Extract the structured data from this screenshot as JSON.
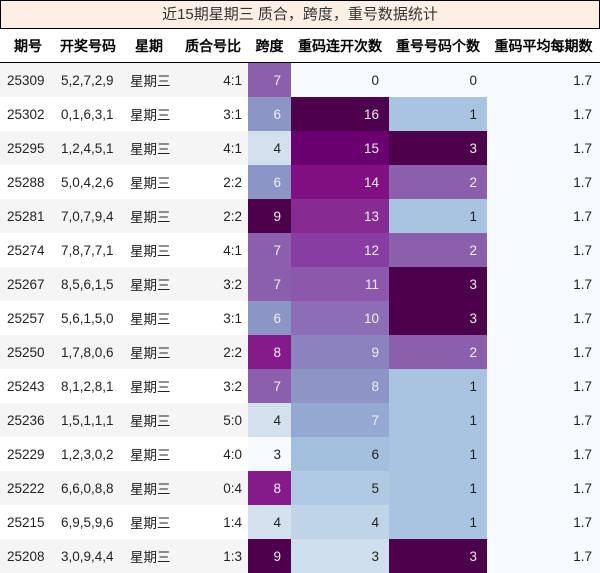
{
  "title": "近15期星期三 质合，跨度，重号数据统计",
  "columns": [
    "期号",
    "开奖号码",
    "星期",
    "质合号比",
    "跨度",
    "重码连开次数",
    "重号号码个数",
    "重码平均每期数"
  ],
  "rows": [
    {
      "issue": "25309",
      "numbers": "5,2,7,2,9",
      "weekday": "星期三",
      "ratio": "4:1",
      "span": "7",
      "repeat_streak": "0",
      "repeat_count": "0",
      "avg": "1.7"
    },
    {
      "issue": "25302",
      "numbers": "0,1,6,3,1",
      "weekday": "星期三",
      "ratio": "3:1",
      "span": "6",
      "repeat_streak": "16",
      "repeat_count": "1",
      "avg": "1.7"
    },
    {
      "issue": "25295",
      "numbers": "1,2,4,5,1",
      "weekday": "星期三",
      "ratio": "4:1",
      "span": "4",
      "repeat_streak": "15",
      "repeat_count": "3",
      "avg": "1.7"
    },
    {
      "issue": "25288",
      "numbers": "5,0,4,2,6",
      "weekday": "星期三",
      "ratio": "2:2",
      "span": "6",
      "repeat_streak": "14",
      "repeat_count": "2",
      "avg": "1.7"
    },
    {
      "issue": "25281",
      "numbers": "7,0,7,9,4",
      "weekday": "星期三",
      "ratio": "2:2",
      "span": "9",
      "repeat_streak": "13",
      "repeat_count": "1",
      "avg": "1.7"
    },
    {
      "issue": "25274",
      "numbers": "7,8,7,7,1",
      "weekday": "星期三",
      "ratio": "4:1",
      "span": "7",
      "repeat_streak": "12",
      "repeat_count": "2",
      "avg": "1.7"
    },
    {
      "issue": "25267",
      "numbers": "8,5,6,1,5",
      "weekday": "星期三",
      "ratio": "3:2",
      "span": "7",
      "repeat_streak": "11",
      "repeat_count": "3",
      "avg": "1.7"
    },
    {
      "issue": "25257",
      "numbers": "5,6,1,5,0",
      "weekday": "星期三",
      "ratio": "3:1",
      "span": "6",
      "repeat_streak": "10",
      "repeat_count": "3",
      "avg": "1.7"
    },
    {
      "issue": "25250",
      "numbers": "1,7,8,0,6",
      "weekday": "星期三",
      "ratio": "2:2",
      "span": "8",
      "repeat_streak": "9",
      "repeat_count": "2",
      "avg": "1.7"
    },
    {
      "issue": "25243",
      "numbers": "8,1,2,8,1",
      "weekday": "星期三",
      "ratio": "3:2",
      "span": "7",
      "repeat_streak": "8",
      "repeat_count": "1",
      "avg": "1.7"
    },
    {
      "issue": "25236",
      "numbers": "1,5,1,1,1",
      "weekday": "星期三",
      "ratio": "5:0",
      "span": "4",
      "repeat_streak": "7",
      "repeat_count": "1",
      "avg": "1.7"
    },
    {
      "issue": "25229",
      "numbers": "1,2,3,0,2",
      "weekday": "星期三",
      "ratio": "4:0",
      "span": "3",
      "repeat_streak": "6",
      "repeat_count": "1",
      "avg": "1.7"
    },
    {
      "issue": "25222",
      "numbers": "6,6,0,8,8",
      "weekday": "星期三",
      "ratio": "0:4",
      "span": "8",
      "repeat_streak": "5",
      "repeat_count": "1",
      "avg": "1.7"
    },
    {
      "issue": "25215",
      "numbers": "6,9,5,9,6",
      "weekday": "星期三",
      "ratio": "1:4",
      "span": "4",
      "repeat_streak": "4",
      "repeat_count": "1",
      "avg": "1.7"
    },
    {
      "issue": "25208",
      "numbers": "3,0,9,4,4",
      "weekday": "星期三",
      "ratio": "1:3",
      "span": "9",
      "repeat_streak": "3",
      "repeat_count": "3",
      "avg": "1.7"
    }
  ],
  "heatmap_colors": {
    "span": {
      "3": "#f6fbfd",
      "4": "#d3e0ee",
      "6": "#8c96c6",
      "7": "#8c5fad",
      "8": "#851b8a",
      "9": "#4d004b"
    },
    "repeat_streak": {
      "0": "#f6fbfd",
      "3": "#d0dfed",
      "4": "#c0d4e7",
      "5": "#b0cae3",
      "6": "#a2bfde",
      "7": "#93a9d2",
      "8": "#8c95c6",
      "9": "#8c82bd",
      "10": "#8c6db6",
      "11": "#8b58ac",
      "12": "#883ea1",
      "13": "#852b92",
      "14": "#801082",
      "15": "#6a0070",
      "16": "#4d004b"
    },
    "repeat_count": {
      "0": "#f6fbfd",
      "1": "#a9c4e0",
      "2": "#8c5fad",
      "3": "#4d004b"
    }
  }
}
